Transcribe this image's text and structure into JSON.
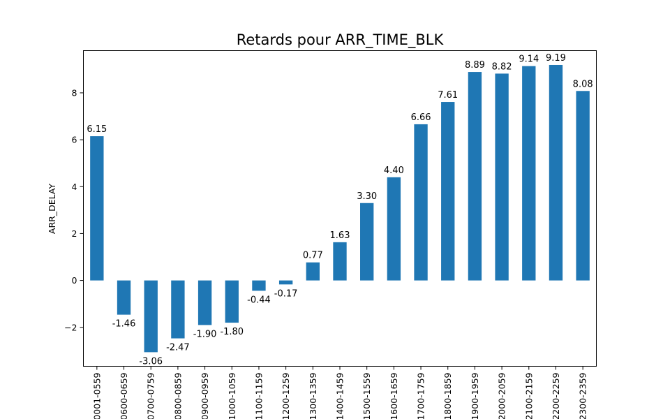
{
  "chart_data": {
    "type": "bar",
    "title": "Retards pour ARR_TIME_BLK",
    "xlabel": "",
    "ylabel": "ARR_DELAY",
    "ylim": [
      -3.66,
      9.8
    ],
    "yticks": [
      -2,
      0,
      2,
      4,
      6,
      8
    ],
    "ytick_labels": [
      "−2",
      "0",
      "2",
      "4",
      "6",
      "8"
    ],
    "grid": false,
    "categories": [
      "0001-0559",
      "0600-0659",
      "0700-0759",
      "0800-0859",
      "0900-0959",
      "1000-1059",
      "1100-1159",
      "1200-1259",
      "1300-1359",
      "1400-1459",
      "1500-1559",
      "1600-1659",
      "1700-1759",
      "1800-1859",
      "1900-1959",
      "2000-2059",
      "2100-2159",
      "2200-2259",
      "2300-2359"
    ],
    "values": [
      6.15,
      -1.46,
      -3.06,
      -2.47,
      -1.9,
      -1.8,
      -0.44,
      -0.17,
      0.77,
      1.63,
      3.3,
      4.4,
      6.66,
      7.61,
      8.89,
      8.82,
      9.14,
      9.19,
      8.08
    ],
    "value_labels": [
      "6.15",
      "-1.46",
      "-3.06",
      "-2.47",
      "-1.90",
      "-1.80",
      "-0.44",
      "-0.17",
      "0.77",
      "1.63",
      "3.30",
      "4.40",
      "6.66",
      "7.61",
      "8.89",
      "8.82",
      "9.14",
      "9.19",
      "8.08"
    ],
    "bar_color": "#1f77b4"
  }
}
